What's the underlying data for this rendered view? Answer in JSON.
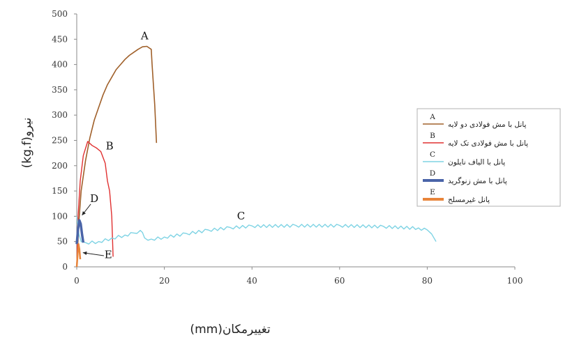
{
  "chart_data": {
    "type": "line",
    "xlabel": "تغییرمکان(mm)",
    "ylabel": "نیرو(kg.f)",
    "xlim": [
      0,
      100
    ],
    "ylim": [
      0,
      500
    ],
    "x_ticks": [
      "0",
      "20",
      "40",
      "60",
      "80",
      "100"
    ],
    "y_ticks": [
      "0",
      "50",
      "100",
      "150",
      "200",
      "250",
      "300",
      "350",
      "400",
      "450",
      "500"
    ],
    "grid": false,
    "legend_position": "right",
    "series": [
      {
        "id": "A",
        "name": "پانل با مش فولادی دو لایه",
        "color": "#a0602a",
        "points": [
          [
            0,
            0
          ],
          [
            0.5,
            90
          ],
          [
            1,
            150
          ],
          [
            2,
            210
          ],
          [
            3,
            255
          ],
          [
            4,
            290
          ],
          [
            5,
            315
          ],
          [
            6,
            340
          ],
          [
            7,
            360
          ],
          [
            8,
            375
          ],
          [
            9,
            390
          ],
          [
            10,
            400
          ],
          [
            11,
            410
          ],
          [
            12,
            418
          ],
          [
            13,
            424
          ],
          [
            14,
            430
          ],
          [
            15,
            435
          ],
          [
            16,
            436
          ],
          [
            17,
            430
          ],
          [
            17.2,
            400
          ],
          [
            17.8,
            320
          ],
          [
            18.2,
            245
          ]
        ]
      },
      {
        "id": "B",
        "name": "پانل با مش فولادی تک لایه",
        "color": "#e03030",
        "points": [
          [
            0,
            0
          ],
          [
            0.3,
            100
          ],
          [
            0.8,
            170
          ],
          [
            1.5,
            220
          ],
          [
            2.5,
            248
          ],
          [
            3.5,
            240
          ],
          [
            4.5,
            235
          ],
          [
            5.5,
            228
          ],
          [
            6.5,
            205
          ],
          [
            7,
            170
          ],
          [
            7.5,
            150
          ],
          [
            8,
            100
          ],
          [
            8.3,
            20
          ]
        ]
      },
      {
        "id": "C",
        "name": "پانل با الیاف نایلون",
        "color": "#7ed3e4",
        "points": [
          [
            0,
            100
          ],
          [
            0.5,
            65
          ],
          [
            1,
            50
          ],
          [
            2,
            48
          ],
          [
            5,
            50
          ],
          [
            8,
            57
          ],
          [
            11,
            63
          ],
          [
            13,
            67
          ],
          [
            14.5,
            72
          ],
          [
            15,
            68
          ],
          [
            15.5,
            57
          ],
          [
            17,
            55
          ],
          [
            20,
            59
          ],
          [
            25,
            66
          ],
          [
            30,
            73
          ],
          [
            35,
            78
          ],
          [
            40,
            81
          ],
          [
            50,
            82
          ],
          [
            60,
            82
          ],
          [
            70,
            80
          ],
          [
            78,
            77
          ],
          [
            80,
            73
          ],
          [
            81,
            65
          ],
          [
            82,
            50
          ]
        ]
      },
      {
        "id": "D",
        "name": "پانل با مش زنوگرید",
        "color": "#4a64a8",
        "points": [
          [
            0,
            45
          ],
          [
            0.3,
            75
          ],
          [
            0.6,
            92
          ],
          [
            0.9,
            85
          ],
          [
            1.2,
            65
          ],
          [
            1.5,
            48
          ]
        ]
      },
      {
        "id": "E",
        "name": "پانل غیرمسلح",
        "color": "#e8843a",
        "points": [
          [
            0,
            0
          ],
          [
            0.2,
            25
          ],
          [
            0.4,
            45
          ],
          [
            0.6,
            35
          ],
          [
            0.8,
            15
          ]
        ]
      }
    ],
    "annotations": [
      {
        "text": "A",
        "x": 15.5,
        "y": 450
      },
      {
        "text": "B",
        "x": 7.5,
        "y": 232
      },
      {
        "text": "C",
        "x": 37.5,
        "y": 94
      },
      {
        "text": "D",
        "x": 4,
        "y": 128
      },
      {
        "text": "E",
        "x": 7.2,
        "y": 17
      }
    ]
  }
}
